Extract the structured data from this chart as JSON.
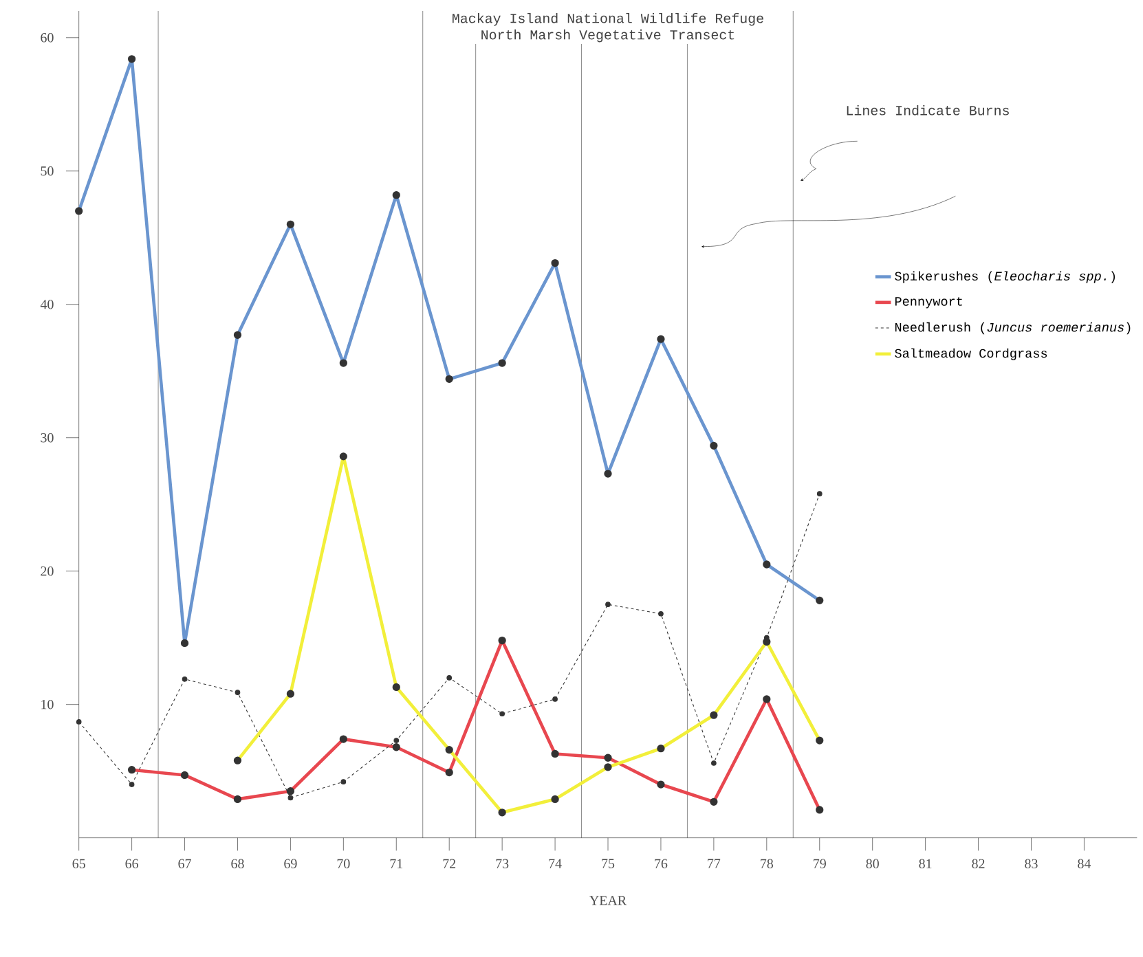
{
  "chart_data": {
    "type": "line",
    "title": "Mackay Island National Wildlife Refuge",
    "subtitle": "North Marsh Vegetative Transect",
    "xlabel": "YEAR",
    "x": [
      65,
      66,
      67,
      68,
      69,
      70,
      71,
      72,
      73,
      74,
      75,
      76,
      77,
      78,
      79
    ],
    "series": [
      {
        "name": "Spikerushes (*Eleocharis spp.*)",
        "color": "#6a95cf",
        "values": [
          47,
          58.4,
          14.6,
          37.7,
          46,
          35.6,
          48.2,
          34.4,
          35.6,
          43.1,
          27.3,
          37.4,
          29.4,
          20.5,
          17.8
        ]
      },
      {
        "name": "Pennywort",
        "color": "#e8474f",
        "values": [
          null,
          5.1,
          4.7,
          2.9,
          3.5,
          7.4,
          6.8,
          4.9,
          14.8,
          6.3,
          6.0,
          4.0,
          2.7,
          10.4,
          2.1
        ]
      },
      {
        "name": "Needlerush (*Juncus roemerianus*)",
        "color": "#333333",
        "line_style": "dashed",
        "values": [
          8.7,
          4.0,
          11.9,
          10.9,
          3.0,
          4.2,
          7.3,
          12.0,
          9.3,
          10.4,
          17.5,
          16.8,
          5.6,
          15.0,
          25.8
        ]
      },
      {
        "name": "Saltmeadow Cordgrass",
        "color": "#f2ef3a",
        "values": [
          null,
          null,
          null,
          5.8,
          10.8,
          28.6,
          11.3,
          6.6,
          1.9,
          2.9,
          5.3,
          6.7,
          9.2,
          14.7,
          7.3
        ]
      }
    ],
    "xlim": [
      65,
      85
    ],
    "xticks": [
      65,
      66,
      67,
      68,
      69,
      70,
      71,
      72,
      73,
      74,
      75,
      76,
      77,
      78,
      79,
      80,
      81,
      82,
      83,
      84
    ],
    "ylim": [
      0,
      62
    ],
    "yticks": [
      10,
      20,
      30,
      40,
      50,
      60
    ],
    "ref_lines": [
      {
        "axis": "x",
        "value": 66.5,
        "color": "#222222"
      },
      {
        "axis": "x",
        "value": 71.5,
        "color": "#222222"
      },
      {
        "axis": "x",
        "value": 72.5,
        "color": "#222222"
      },
      {
        "axis": "x",
        "value": 74.5,
        "color": "#222222"
      },
      {
        "axis": "x",
        "value": 76.5,
        "color": "#222222"
      },
      {
        "axis": "x",
        "value": 78.5,
        "color": "#222222"
      }
    ],
    "annotations": [
      "Lines Indicate Burns"
    ],
    "marker": "circle",
    "line_style": "solid",
    "grid": false,
    "legend": "right"
  }
}
